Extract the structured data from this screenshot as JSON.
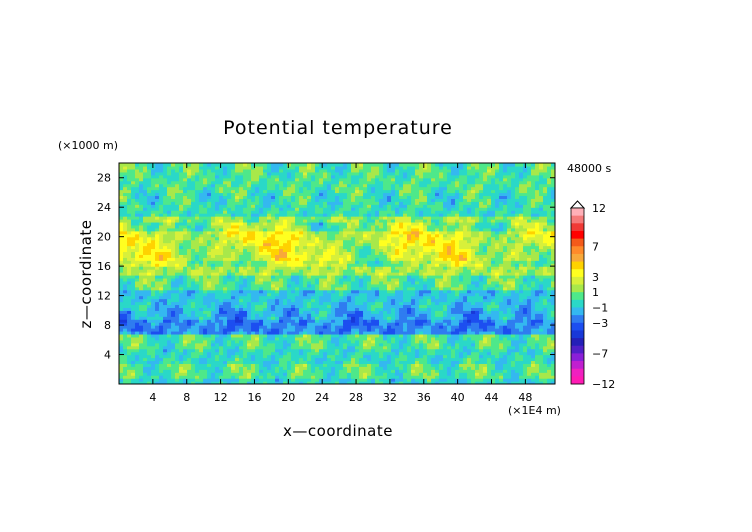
{
  "chart_data": {
    "type": "heatmap",
    "title": "Potential temperature",
    "xlabel": "x—coordinate",
    "ylabel": "z—coordinate",
    "x_unit": "(×1E4 m)",
    "y_unit": "(×1000 m)",
    "time_label": "48000 s",
    "xlim": [
      0,
      51.5
    ],
    "ylim": [
      0,
      30
    ],
    "x_ticks": [
      4,
      8,
      12,
      16,
      20,
      24,
      28,
      32,
      36,
      40,
      44,
      48
    ],
    "y_ticks": [
      4,
      8,
      12,
      16,
      20,
      24,
      28
    ],
    "colorbar": {
      "levels": [
        12,
        11,
        10,
        9,
        8,
        7,
        6,
        5,
        4,
        3,
        2,
        1,
        0,
        -1,
        -2,
        -3,
        -4,
        -5,
        -6,
        -7,
        -8,
        -9,
        -10,
        -11,
        -12
      ],
      "colors": [
        "#ffb0b8",
        "#f57a7a",
        "#f03a36",
        "#ff0000",
        "#f45a1a",
        "#ff8a2a",
        "#f8a83a",
        "#ffd200",
        "#ffff20",
        "#d8f03a",
        "#a8e84a",
        "#4ee88a",
        "#2ad8c8",
        "#34b8f0",
        "#2f7cf0",
        "#1c4ef0",
        "#1838d8",
        "#2420b8",
        "#5020c8",
        "#8a20d8",
        "#c020d0",
        "#f020c0",
        "#ff1ab4"
      ],
      "labels": [
        "12",
        "7",
        "3",
        "1",
        "−1",
        "−3",
        "−7",
        "−12"
      ]
    },
    "bands": [
      {
        "z": [
          0,
          1
        ],
        "level": -0.6
      },
      {
        "z": [
          1,
          3
        ],
        "level": 0.3
      },
      {
        "z": [
          3,
          5
        ],
        "level": -0.4
      },
      {
        "z": [
          5,
          7
        ],
        "level": 0.2
      },
      {
        "z": [
          7,
          9
        ],
        "level": -2.2
      },
      {
        "z": [
          9,
          10.5
        ],
        "level": -1.4
      },
      {
        "z": [
          10.5,
          13
        ],
        "level": -1.1
      },
      {
        "z": [
          13,
          15
        ],
        "level": 0.4
      },
      {
        "z": [
          15,
          17
        ],
        "level": 1.6
      },
      {
        "z": [
          17,
          19
        ],
        "level": 2.4
      },
      {
        "z": [
          19,
          21
        ],
        "level": 2.7
      },
      {
        "z": [
          21,
          23
        ],
        "level": 1.3
      },
      {
        "z": [
          23,
          26
        ],
        "level": -0.2
      },
      {
        "z": [
          26,
          30
        ],
        "level": 0.2
      }
    ]
  }
}
